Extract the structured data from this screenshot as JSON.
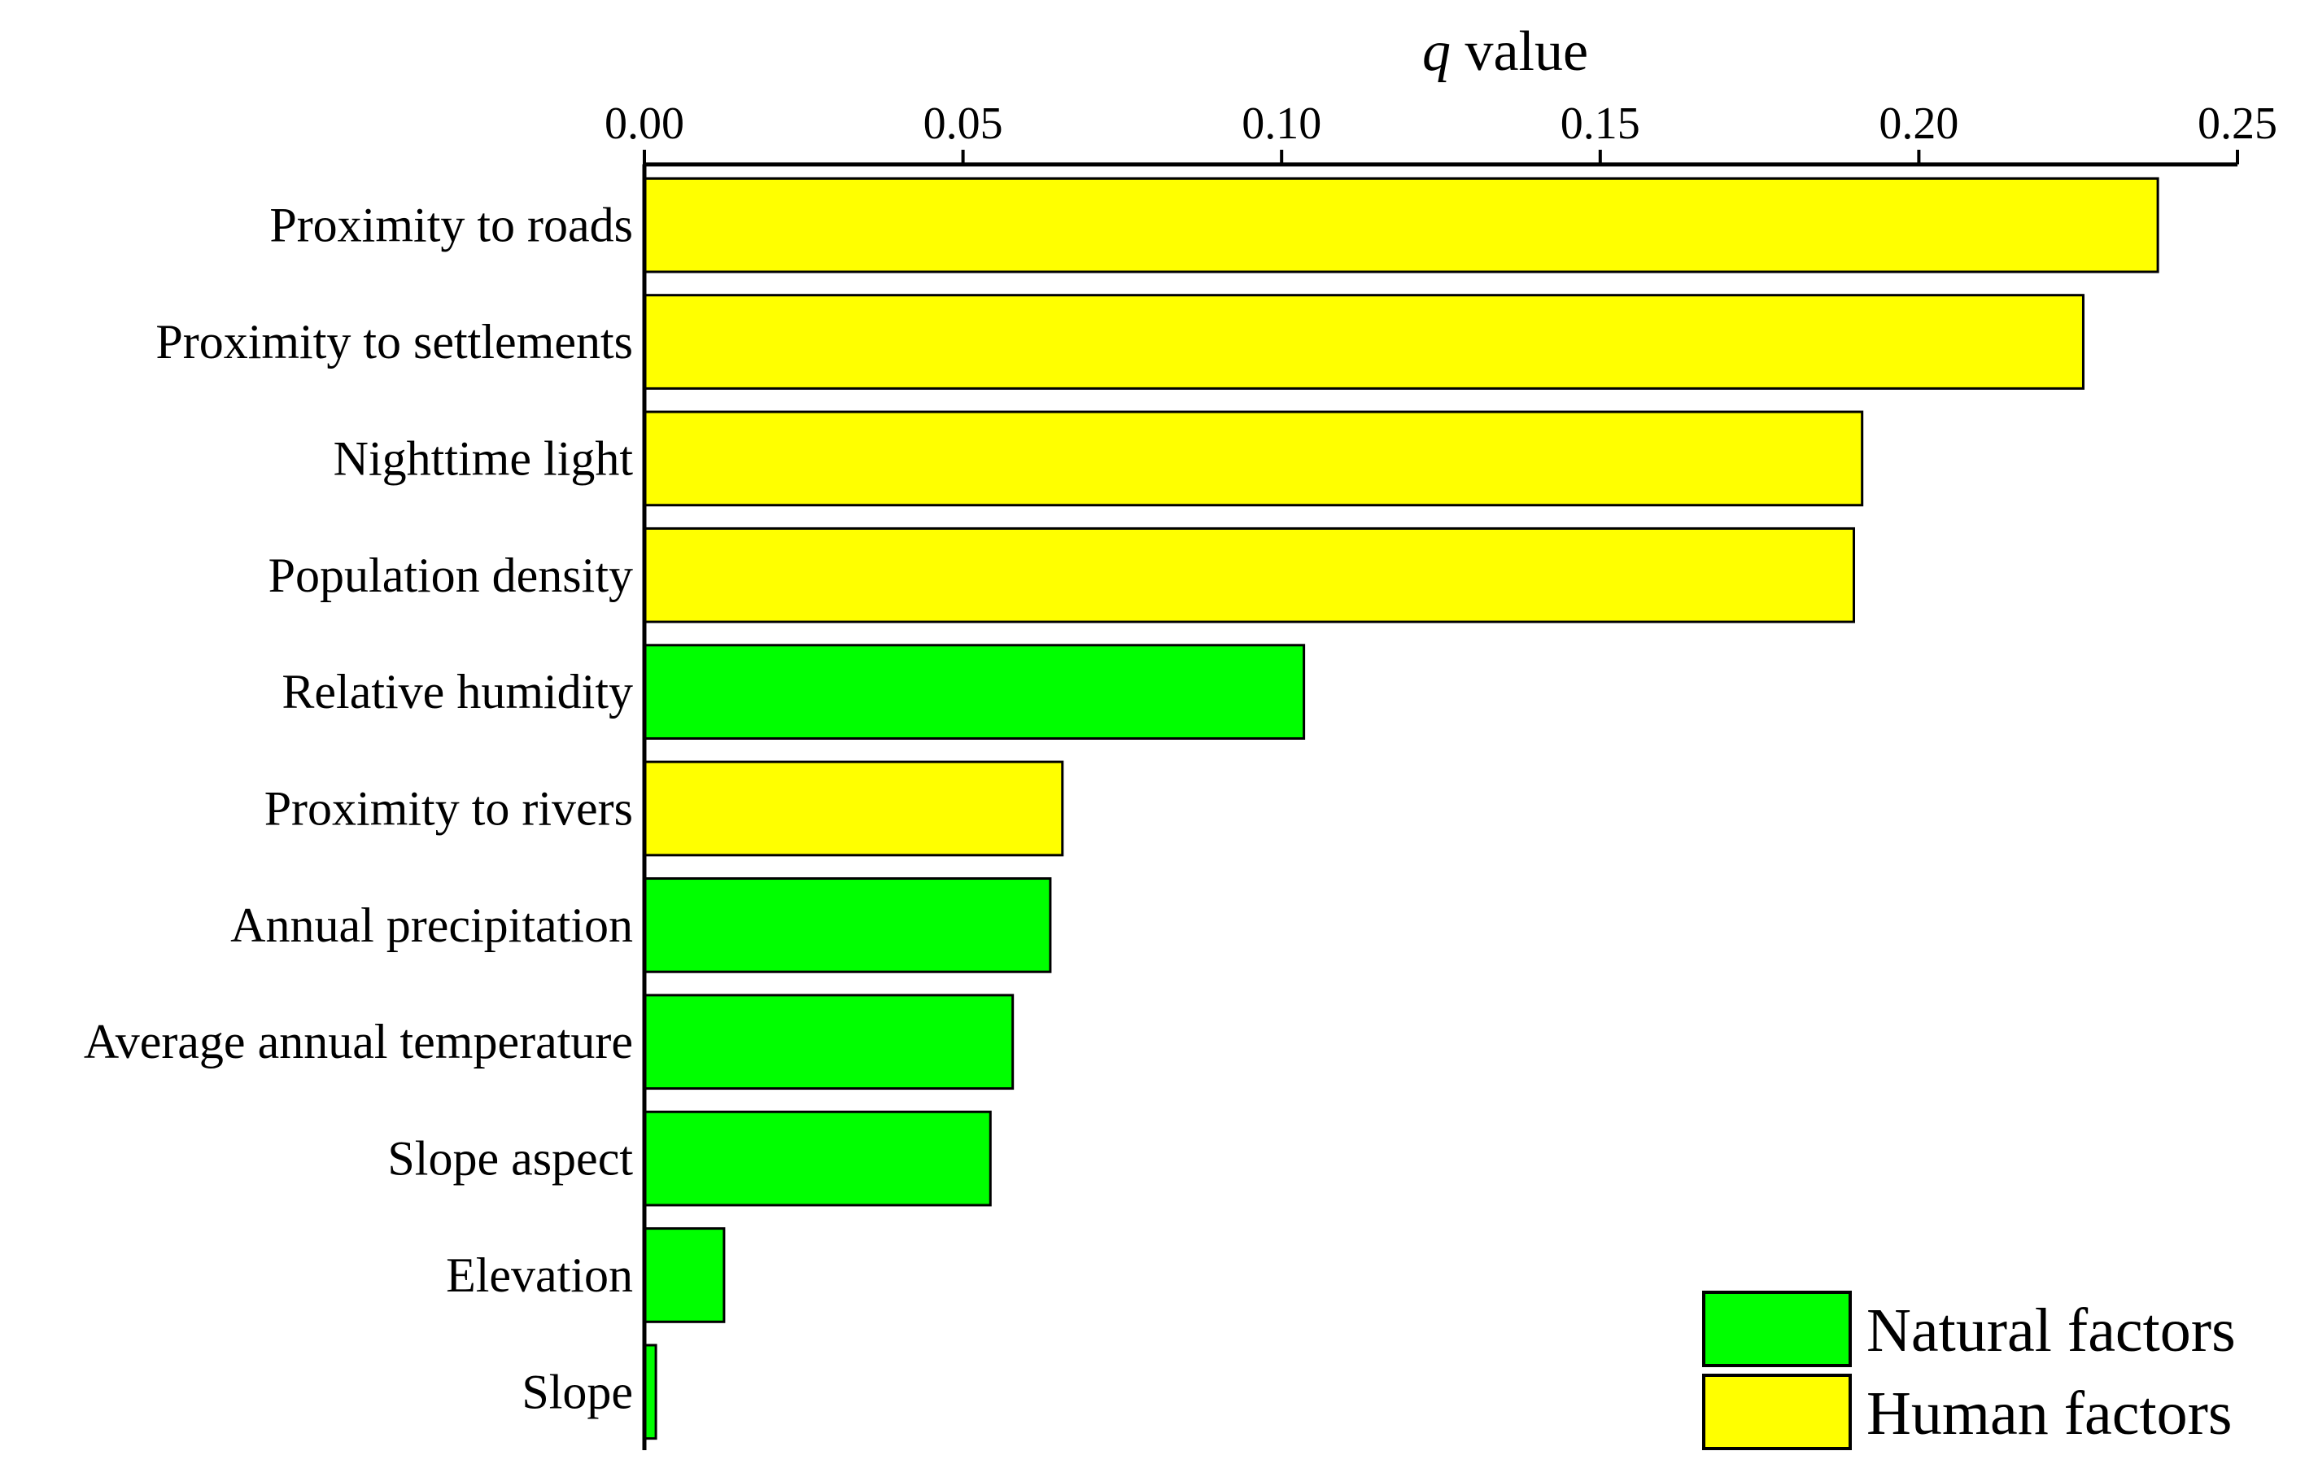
{
  "chart_data": {
    "type": "bar",
    "orientation": "horizontal",
    "xlabel_italic": "q",
    "xlabel_rest": " value",
    "xlim": [
      0,
      0.25
    ],
    "ticks": [
      "0.00",
      "0.05",
      "0.10",
      "0.15",
      "0.20",
      "0.25"
    ],
    "tick_values": [
      0,
      0.05,
      0.1,
      0.15,
      0.2,
      0.25
    ],
    "categories": [
      "Proximity to roads",
      "Proximity to settlements",
      "Nighttime light",
      "Population density",
      "Relative humidity",
      "Proximity to rivers",
      "Annual precipitation",
      "Average annual temperature",
      "Slope aspect",
      "Elevation",
      "Slope"
    ],
    "values": [
      0.2375,
      0.2258,
      0.1911,
      0.1898,
      0.1035,
      0.0656,
      0.0637,
      0.0578,
      0.0543,
      0.0125,
      0.0018
    ],
    "groups": [
      "Human factors",
      "Human factors",
      "Human factors",
      "Human factors",
      "Natural factors",
      "Human factors",
      "Natural factors",
      "Natural factors",
      "Natural factors",
      "Natural factors",
      "Natural factors"
    ],
    "legend": [
      {
        "name": "Natural factors",
        "color": "#00ff00"
      },
      {
        "name": "Human factors",
        "color": "#ffff00"
      }
    ],
    "legend_position": "bottom-right",
    "grid": false
  }
}
